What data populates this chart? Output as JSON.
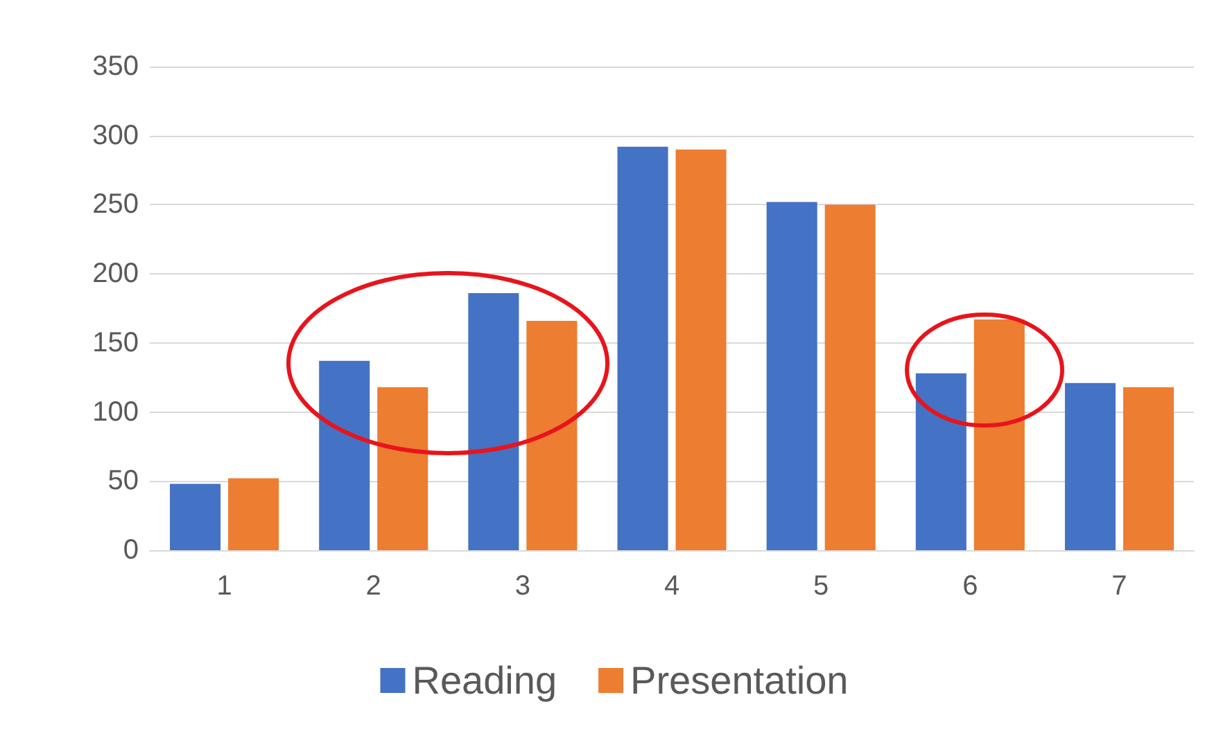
{
  "chart_data": {
    "type": "bar",
    "categories": [
      "1",
      "2",
      "3",
      "4",
      "5",
      "6",
      "7"
    ],
    "series": [
      {
        "name": "Reading",
        "color": "#4472c4",
        "values": [
          48,
          137,
          186,
          292,
          252,
          128,
          121
        ]
      },
      {
        "name": "Presentation",
        "color": "#ed7d31",
        "values": [
          52,
          118,
          166,
          290,
          250,
          167,
          118
        ]
      }
    ],
    "ylim": [
      0,
      350
    ],
    "yticks": [
      0,
      50,
      100,
      150,
      200,
      250,
      300,
      350
    ],
    "grid": "y",
    "legend": "bottom"
  }
}
